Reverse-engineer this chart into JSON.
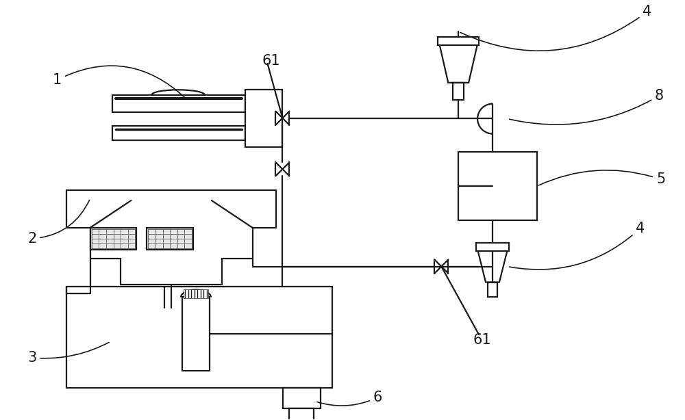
{
  "bg_color": "#ffffff",
  "line_color": "#1a1a1a",
  "lw": 1.6,
  "fig_width": 10.0,
  "fig_height": 6.14,
  "dpi": 100
}
